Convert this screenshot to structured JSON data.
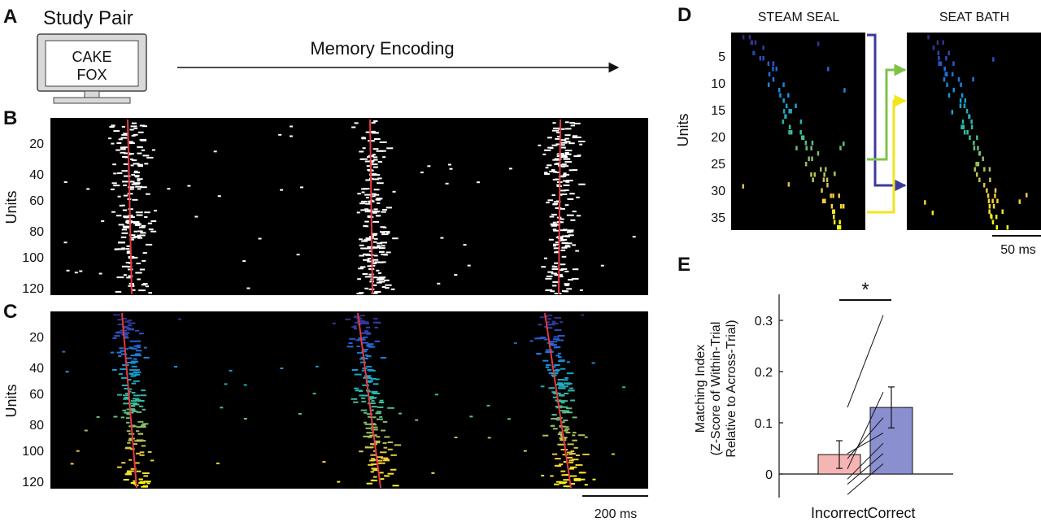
{
  "panels": {
    "A": {
      "label": "A",
      "title": "Study Pair",
      "screen_words": [
        "CAKE",
        "FOX"
      ],
      "arrow_label": "Memory Encoding"
    },
    "B": {
      "label": "B",
      "ylabel": "Units",
      "ticks": [
        "20",
        "40",
        "60",
        "80",
        "100",
        "120"
      ],
      "raster_color": "#ffffff",
      "fit_line_color": "#e8383d"
    },
    "C": {
      "label": "C",
      "ylabel": "Units",
      "ticks": [
        "20",
        "40",
        "60",
        "80",
        "100",
        "120"
      ],
      "scalebar": "200 ms",
      "colormap": "parula",
      "fit_line_color": "#e8383d"
    },
    "D": {
      "label": "D",
      "left_title": "STEAM SEAL",
      "right_title": "SEAT BATH",
      "ylabel": "Units",
      "ticks": [
        "5",
        "10",
        "15",
        "20",
        "25",
        "30",
        "35"
      ],
      "scalebar": "50 ms",
      "arrow_colors": [
        "#3b3b9c",
        "#7ec24a",
        "#f2e51b",
        "#f2e51b"
      ]
    },
    "E": {
      "label": "E",
      "ylabel_lines": [
        "Matching Index",
        "(Z-Score of Within-Trial",
        "Relative to Across-Trial)"
      ],
      "significance": "*"
    }
  },
  "chart_data": [
    {
      "panel": "E",
      "type": "bar",
      "categories": [
        "Incorrect",
        "Correct"
      ],
      "values": [
        0.038,
        0.13
      ],
      "errors": [
        0.027,
        0.04
      ],
      "colors": [
        "#f5b5b5",
        "#8a8fd0"
      ],
      "ylim": [
        -0.04,
        0.35
      ],
      "yticks": [
        "0",
        "0.1",
        "0.2",
        "0.3"
      ],
      "ytick_values": [
        0,
        0.1,
        0.2,
        0.3
      ],
      "paired_lines": [
        [
          0.13,
          0.31
        ],
        [
          0.01,
          0.16
        ],
        [
          0.03,
          0.11
        ],
        [
          0.04,
          0.08
        ],
        [
          -0.01,
          0.06
        ],
        [
          -0.02,
          0.04
        ],
        [
          -0.04,
          0.02
        ]
      ]
    }
  ]
}
